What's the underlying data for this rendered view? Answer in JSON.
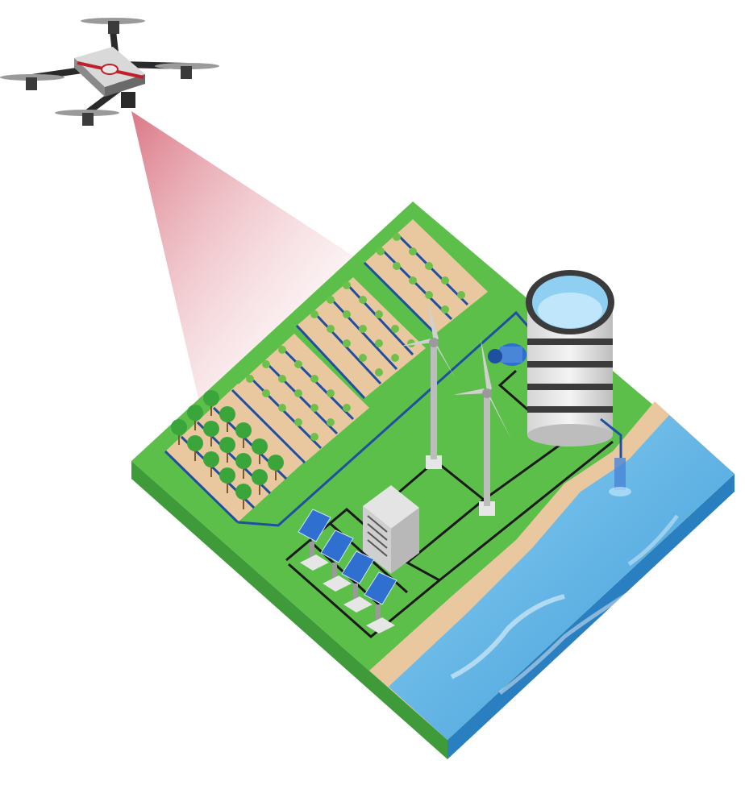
{
  "scene": {
    "description_items": [
      "drone",
      "camera-beam",
      "farm-plot",
      "palm-trees",
      "crop-rows",
      "irrigation-pipes",
      "wind-turbines",
      "water-tank",
      "water-pump",
      "control-unit",
      "solar-panels",
      "sea",
      "sensor-probe"
    ],
    "colors": {
      "grass": "#5cbf4a",
      "grass_side": "#3f9a3a",
      "soil": "#e9c8a0",
      "pipe": "#1f4fa0",
      "cable": "#1a1a1a",
      "sea": "#4aa9de",
      "sea_dark": "#2a7fc0",
      "beam": "#e08a98",
      "tank_stripe": "#3b3b3b",
      "panel": "#2f6fcf"
    }
  }
}
